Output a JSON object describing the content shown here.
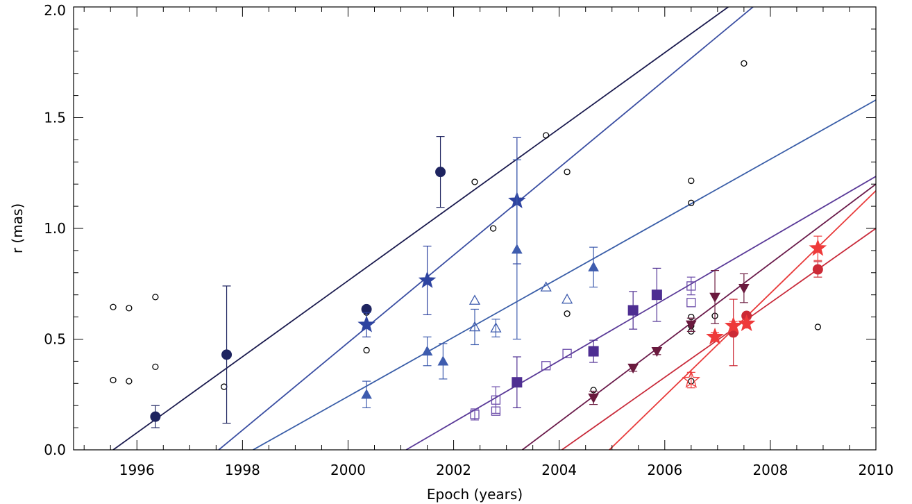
{
  "chart_data": {
    "type": "scatter",
    "title": "",
    "xlabel": "Epoch (years)",
    "ylabel": "r (mas)",
    "xlim": [
      1994.8,
      2010
    ],
    "ylim": [
      0,
      2.0
    ],
    "xticks": [
      1996,
      1998,
      2000,
      2002,
      2004,
      2006,
      2008,
      2010
    ],
    "xtick_labels": [
      "1996",
      "1998",
      "2000",
      "2002",
      "2004",
      "2006",
      "2008",
      "2010"
    ],
    "yticks": [
      0.0,
      0.5,
      1.0,
      1.5,
      2.0
    ],
    "ytick_labels": [
      "0.0",
      "0.5",
      "1.0",
      "1.5",
      "2.0"
    ],
    "grid": false,
    "legend": "none",
    "fits": [
      {
        "color": "#1a1a4e",
        "x": [
          1995.55,
          2010
        ],
        "y": [
          0.0,
          2.48
        ]
      },
      {
        "color": "#3a4ea2",
        "x": [
          1997.55,
          2010
        ],
        "y": [
          0.0,
          2.46
        ]
      },
      {
        "color": "#3a5ea8",
        "x": [
          1998.2,
          2010
        ],
        "y": [
          0.0,
          1.58
        ]
      },
      {
        "color": "#5a3a98",
        "x": [
          2001.1,
          2010
        ],
        "y": [
          0.0,
          1.235
        ]
      },
      {
        "color": "#6a1a4a",
        "x": [
          2003.3,
          2010
        ],
        "y": [
          0.0,
          1.2
        ]
      },
      {
        "color": "#c82a3a",
        "x": [
          2004.05,
          2010
        ],
        "y": [
          0.0,
          1.0
        ]
      },
      {
        "color": "#e83a3a",
        "x": [
          2004.95,
          2010
        ],
        "y": [
          0.0,
          1.17
        ]
      }
    ],
    "series": [
      {
        "marker": "circle-open",
        "color": "#000000",
        "size": 4,
        "points": [
          {
            "x": 1995.55,
            "y": 0.645
          },
          {
            "x": 1995.85,
            "y": 0.64
          },
          {
            "x": 1995.55,
            "y": 0.315
          },
          {
            "x": 1995.85,
            "y": 0.31
          },
          {
            "x": 1996.35,
            "y": 0.69
          },
          {
            "x": 1996.35,
            "y": 0.375
          },
          {
            "x": 1997.65,
            "y": 0.285
          },
          {
            "x": 2000.35,
            "y": 0.62
          },
          {
            "x": 2000.35,
            "y": 0.45
          },
          {
            "x": 2002.4,
            "y": 1.21
          },
          {
            "x": 2002.75,
            "y": 1.0
          },
          {
            "x": 2003.75,
            "y": 1.42
          },
          {
            "x": 2004.15,
            "y": 1.255
          },
          {
            "x": 2004.15,
            "y": 0.615
          },
          {
            "x": 2004.65,
            "y": 0.27
          },
          {
            "x": 2006.5,
            "y": 1.215
          },
          {
            "x": 2006.5,
            "y": 1.115
          },
          {
            "x": 2006.5,
            "y": 0.6
          },
          {
            "x": 2006.5,
            "y": 0.56
          },
          {
            "x": 2006.5,
            "y": 0.535
          },
          {
            "x": 2006.95,
            "y": 0.605
          },
          {
            "x": 2007.5,
            "y": 1.745
          },
          {
            "x": 2008.9,
            "y": 0.555
          },
          {
            "x": 2006.5,
            "y": 0.31
          }
        ]
      },
      {
        "marker": "circle",
        "color": "#1e2460",
        "size": 7,
        "points": [
          {
            "x": 1996.35,
            "y": 0.15,
            "err": 0.05
          },
          {
            "x": 1997.7,
            "y": 0.43,
            "err": 0.31
          },
          {
            "x": 2000.35,
            "y": 0.635
          },
          {
            "x": 2001.75,
            "y": 1.255,
            "err": 0.16
          }
        ]
      },
      {
        "marker": "star",
        "color": "#2e44a0",
        "size": 12,
        "points": [
          {
            "x": 2000.35,
            "y": 0.565,
            "err": 0.055
          },
          {
            "x": 2001.5,
            "y": 0.765,
            "err": 0.155
          },
          {
            "x": 2003.2,
            "y": 1.125,
            "err": 0.285
          }
        ]
      },
      {
        "marker": "triangle",
        "color": "#3e5cae",
        "size": 7,
        "points": [
          {
            "x": 2000.35,
            "y": 0.25,
            "err": 0.06
          },
          {
            "x": 2001.5,
            "y": 0.445,
            "err": 0.065
          },
          {
            "x": 2001.8,
            "y": 0.4,
            "err": 0.08
          },
          {
            "x": 2003.2,
            "y": 0.905,
            "err": 0.405
          },
          {
            "x": 2004.65,
            "y": 0.825,
            "err": 0.09
          }
        ]
      },
      {
        "marker": "triangle-open",
        "color": "#3e5cae",
        "size": 7,
        "points": [
          {
            "x": 2002.4,
            "y": 0.675
          },
          {
            "x": 2002.4,
            "y": 0.555,
            "err": 0.08
          },
          {
            "x": 2002.8,
            "y": 0.55,
            "err": 0.04
          },
          {
            "x": 2003.75,
            "y": 0.735
          },
          {
            "x": 2004.15,
            "y": 0.68
          }
        ]
      },
      {
        "marker": "square",
        "color": "#4e2e92",
        "size": 7,
        "points": [
          {
            "x": 2003.2,
            "y": 0.305,
            "err": 0.115
          },
          {
            "x": 2004.65,
            "y": 0.445,
            "err": 0.05
          },
          {
            "x": 2005.4,
            "y": 0.63,
            "err": 0.085
          },
          {
            "x": 2005.85,
            "y": 0.7,
            "err": 0.12
          }
        ]
      },
      {
        "marker": "square-open",
        "color": "#6a4aa8",
        "size": 6,
        "points": [
          {
            "x": 2002.4,
            "y": 0.16,
            "err": 0.025
          },
          {
            "x": 2002.8,
            "y": 0.225,
            "err": 0.06
          },
          {
            "x": 2002.8,
            "y": 0.175
          },
          {
            "x": 2003.75,
            "y": 0.38
          },
          {
            "x": 2004.15,
            "y": 0.435
          },
          {
            "x": 2006.5,
            "y": 0.74,
            "err": 0.04
          },
          {
            "x": 2006.5,
            "y": 0.665
          }
        ]
      },
      {
        "marker": "triangle-down",
        "color": "#6a1a3e",
        "size": 7,
        "points": [
          {
            "x": 2004.65,
            "y": 0.235,
            "err": 0.03
          },
          {
            "x": 2005.4,
            "y": 0.37,
            "err": 0.015
          },
          {
            "x": 2005.85,
            "y": 0.445,
            "err": 0.015
          },
          {
            "x": 2006.5,
            "y": 0.565,
            "err": 0.03
          },
          {
            "x": 2006.95,
            "y": 0.69,
            "err": 0.12
          },
          {
            "x": 2007.5,
            "y": 0.73,
            "err": 0.065
          }
        ]
      },
      {
        "marker": "circle",
        "color": "#cc2a36",
        "size": 7,
        "points": [
          {
            "x": 2007.3,
            "y": 0.53,
            "err": 0.15
          },
          {
            "x": 2007.55,
            "y": 0.605
          },
          {
            "x": 2008.9,
            "y": 0.815,
            "err": 0.035
          }
        ]
      },
      {
        "marker": "star",
        "color": "#ee3a3a",
        "size": 12,
        "points": [
          {
            "x": 2006.95,
            "y": 0.51,
            "err": 0.02
          },
          {
            "x": 2007.3,
            "y": 0.56,
            "err": 0.02
          },
          {
            "x": 2007.55,
            "y": 0.57,
            "err": 0.02
          },
          {
            "x": 2008.9,
            "y": 0.91,
            "err": 0.055
          }
        ]
      },
      {
        "marker": "star-open",
        "color": "#ee3a3a",
        "size": 12,
        "points": [
          {
            "x": 2006.5,
            "y": 0.315,
            "err": 0.035
          }
        ]
      }
    ]
  }
}
